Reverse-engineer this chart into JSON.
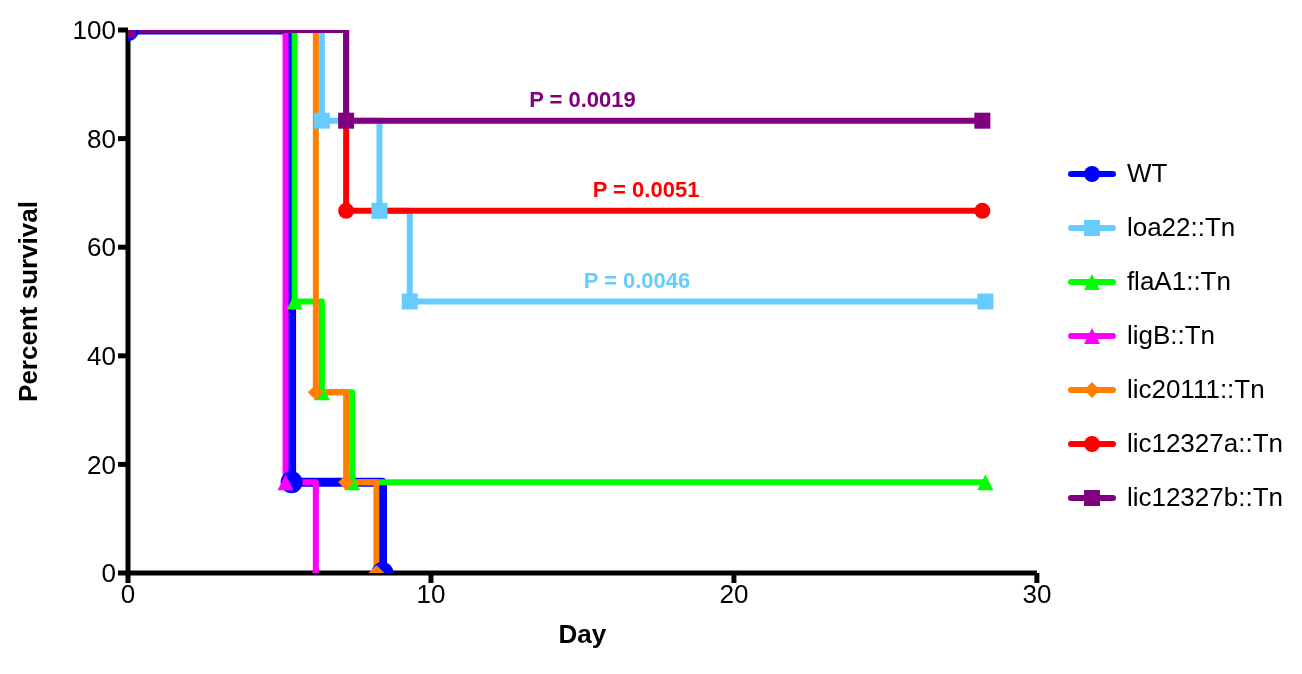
{
  "chart_data": {
    "type": "step",
    "xlabel": "Day",
    "ylabel": "Percent survival",
    "xlim": [
      0,
      30
    ],
    "xticks": [
      0,
      10,
      20,
      30
    ],
    "ylim": [
      0,
      100
    ],
    "yticks": [
      0,
      20,
      40,
      60,
      80,
      100
    ],
    "grid": false,
    "legend": "right",
    "line_style": "solid",
    "series": [
      {
        "name": "WT",
        "color": "#0000ff",
        "marker": "circle",
        "x": [
          0,
          5.4,
          8.4
        ],
        "values": [
          100,
          16.7,
          0
        ]
      },
      {
        "name": "loa22::Tn",
        "color": "#66ccff",
        "marker": "square",
        "x": [
          0,
          6.4,
          8.3,
          9.3,
          28.3
        ],
        "values": [
          100,
          83.3,
          66.7,
          50,
          50
        ]
      },
      {
        "name": "flaA1::Tn",
        "color": "#00ff00",
        "marker": "triangle",
        "x": [
          0,
          5.5,
          6.4,
          7.4,
          28.3
        ],
        "values": [
          100,
          50,
          33.3,
          16.7,
          16.7
        ]
      },
      {
        "name": "ligB::Tn",
        "color": "#ff00ff",
        "marker": "triangle",
        "x": [
          0,
          5.2,
          6.2
        ],
        "values": [
          100,
          16.7,
          0
        ]
      },
      {
        "name": "lic20111::Tn",
        "color": "#ff8000",
        "marker": "diamond",
        "x": [
          0,
          6.2,
          7.2,
          8.2
        ],
        "values": [
          100,
          33.3,
          16.7,
          0
        ]
      },
      {
        "name": "lic12327a::Tn",
        "color": "#ff0000",
        "marker": "circle",
        "x": [
          0,
          7.2,
          28.2
        ],
        "values": [
          100,
          66.7,
          66.7
        ]
      },
      {
        "name": "lic12327b::Tn",
        "color": "#800080",
        "marker": "square",
        "x": [
          0,
          7.2,
          28.2
        ],
        "values": [
          100,
          83.3,
          83.3
        ]
      }
    ],
    "annotations": [
      {
        "text": "P = 0.0019",
        "x": 15,
        "y": 83.3
      },
      {
        "text": "P = 0.0051",
        "x": 17.1,
        "y": 66.7
      },
      {
        "text": "P = 0.0046",
        "x": 16.8,
        "y": 50
      }
    ]
  }
}
